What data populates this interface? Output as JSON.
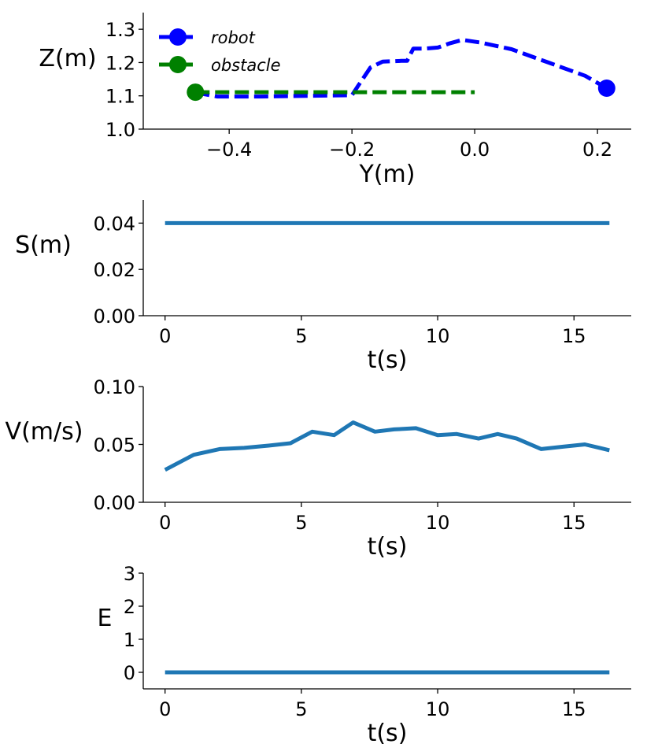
{
  "chart_data": [
    {
      "type": "line",
      "xlabel": "Y(m)",
      "ylabel": "Z(m)",
      "xlim": [
        -0.54,
        0.255
      ],
      "ylim": [
        1.0,
        1.35
      ],
      "xticks": [
        -0.4,
        -0.2,
        0.0,
        0.2
      ],
      "xtick_labels": [
        "−0.4",
        "−0.2",
        "0.0",
        "0.2"
      ],
      "yticks": [
        1.0,
        1.1,
        1.2,
        1.3
      ],
      "ytick_labels": [
        "1.0",
        "1.1",
        "1.2",
        "1.3"
      ],
      "legend": {
        "placement": "top-left",
        "entries": [
          "robot",
          "obstacle"
        ]
      },
      "series": [
        {
          "name": "robot",
          "color": "#0000ff",
          "style": "dashed",
          "x": [
            -0.455,
            -0.42,
            -0.35,
            -0.27,
            -0.2,
            -0.19,
            -0.17,
            -0.15,
            -0.12,
            -0.11,
            -0.1,
            -0.08,
            -0.06,
            -0.04,
            -0.02,
            0.01,
            0.06,
            0.12,
            0.18,
            0.215
          ],
          "y": [
            1.11,
            1.098,
            1.098,
            1.1,
            1.102,
            1.13,
            1.185,
            1.203,
            1.205,
            1.205,
            1.242,
            1.242,
            1.245,
            1.258,
            1.268,
            1.26,
            1.24,
            1.2,
            1.16,
            1.123
          ],
          "end_marker": {
            "x": 0.215,
            "y": 1.123
          }
        },
        {
          "name": "obstacle",
          "color": "#008000",
          "style": "dashed",
          "x": [
            -0.455,
            0.0
          ],
          "y": [
            1.111,
            1.111
          ],
          "start_marker": {
            "x": -0.455,
            "y": 1.111
          }
        }
      ]
    },
    {
      "type": "line",
      "xlabel": "t(s)",
      "ylabel": "S(m)",
      "xlim": [
        -0.8,
        17.1
      ],
      "ylim": [
        0.0,
        0.05
      ],
      "xticks": [
        0,
        5,
        10,
        15
      ],
      "xtick_labels": [
        "0",
        "5",
        "10",
        "15"
      ],
      "yticks": [
        0.0,
        0.02,
        0.04
      ],
      "ytick_labels": [
        "0.00",
        "0.02",
        "0.04"
      ],
      "series": [
        {
          "name": "S",
          "color": "#1f77b4",
          "x": [
            0,
            16.3
          ],
          "y": [
            0.04,
            0.04
          ]
        }
      ]
    },
    {
      "type": "line",
      "xlabel": "t(s)",
      "ylabel": "V(m/s)",
      "xlim": [
        -0.8,
        17.1
      ],
      "ylim": [
        0.0,
        0.1
      ],
      "xticks": [
        0,
        5,
        10,
        15
      ],
      "xtick_labels": [
        "0",
        "5",
        "10",
        "15"
      ],
      "yticks": [
        0.0,
        0.05,
        0.1
      ],
      "ytick_labels": [
        "0.00",
        "0.05",
        "0.10"
      ],
      "series": [
        {
          "name": "V",
          "color": "#1f77b4",
          "x": [
            0,
            1.05,
            2.0,
            2.9,
            3.8,
            4.6,
            5.4,
            6.2,
            6.9,
            7.7,
            8.4,
            9.2,
            10.0,
            10.7,
            11.5,
            12.2,
            12.9,
            13.8,
            14.6,
            15.4,
            16.3
          ],
          "y": [
            0.028,
            0.041,
            0.046,
            0.047,
            0.049,
            0.051,
            0.061,
            0.058,
            0.069,
            0.061,
            0.063,
            0.064,
            0.058,
            0.059,
            0.055,
            0.059,
            0.055,
            0.046,
            0.048,
            0.05,
            0.045
          ]
        }
      ]
    },
    {
      "type": "line",
      "xlabel": "t(s)",
      "ylabel": "E",
      "xlim": [
        -0.8,
        17.1
      ],
      "ylim": [
        -0.5,
        3.0
      ],
      "xticks": [
        0,
        5,
        10,
        15
      ],
      "xtick_labels": [
        "0",
        "5",
        "10",
        "15"
      ],
      "yticks": [
        0,
        1,
        2,
        3
      ],
      "ytick_labels": [
        "0",
        "1",
        "2",
        "3"
      ],
      "series": [
        {
          "name": "E",
          "color": "#1f77b4",
          "x": [
            0,
            16.3
          ],
          "y": [
            0,
            0
          ]
        }
      ]
    }
  ]
}
